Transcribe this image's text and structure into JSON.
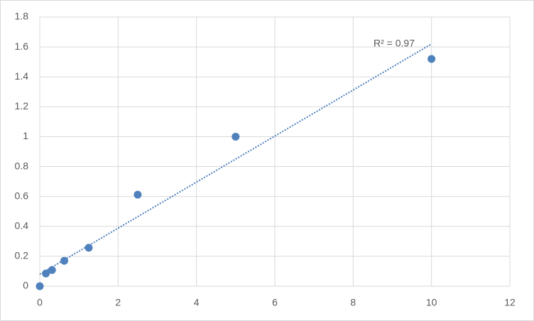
{
  "chart_data": {
    "type": "scatter",
    "x": [
      0,
      0.156,
      0.3125,
      0.625,
      1.25,
      2.5,
      5,
      10
    ],
    "values": [
      0,
      0.085,
      0.108,
      0.17,
      0.257,
      0.612,
      1.0,
      1.52
    ],
    "color": "#4f81bd",
    "trendline": {
      "x": [
        0,
        10
      ],
      "values": [
        0.08,
        1.62
      ],
      "color": "#4f81bd"
    },
    "annotation": "R² = 0.97",
    "xlim": [
      0,
      12
    ],
    "xticks": [
      0,
      2,
      4,
      6,
      8,
      10,
      12
    ],
    "ylim": [
      0,
      1.8
    ],
    "yticks": [
      0,
      0.2,
      0.4,
      0.6,
      0.8,
      1,
      1.2,
      1.4,
      1.6,
      1.8
    ],
    "grid": true
  }
}
